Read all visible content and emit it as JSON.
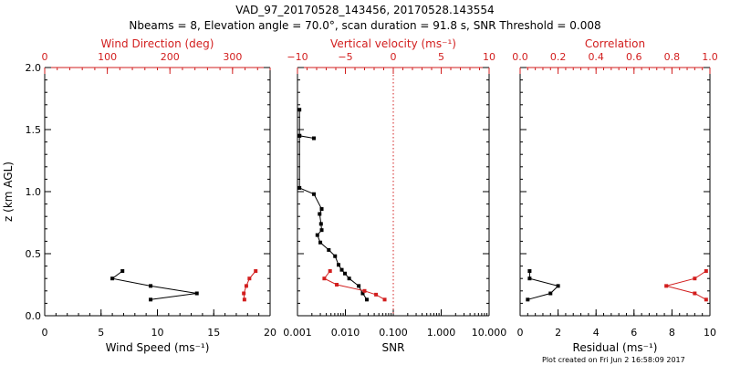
{
  "header": {
    "title_line1": "VAD_97_20170528_143456, 20170528.143554",
    "title_line2": "Nbeams = 8, Elevation angle = 70.0°, scan duration = 91.8 s, SNR Threshold = 0.008"
  },
  "footer": {
    "plot_created": "Plot created on Fri Jun  2 16:58:09 2017"
  },
  "colors": {
    "black": "#000000",
    "red": "#d21e1e"
  },
  "chart_data": [
    {
      "type": "line",
      "panel": "wind",
      "ylabel": "z (km AGL)",
      "ylim": [
        0,
        2
      ],
      "y_ticks": [
        "0.0",
        "0.5",
        "1.0",
        "1.5",
        "2.0"
      ],
      "bottom_axis": {
        "label": "Wind Speed (ms⁻¹)",
        "lim": [
          0,
          20
        ],
        "ticks": [
          "0",
          "5",
          "10",
          "15",
          "20"
        ]
      },
      "top_axis": {
        "label": "Wind Direction (deg)",
        "lim": [
          0,
          360
        ],
        "ticks": [
          "0",
          "100",
          "200",
          "300"
        ]
      },
      "series": [
        {
          "axis": "bottom",
          "color": "black",
          "points": [
            [
              9.4,
              0.13
            ],
            [
              13.5,
              0.18
            ],
            [
              9.4,
              0.24
            ],
            [
              6.0,
              0.3
            ],
            [
              6.9,
              0.36
            ]
          ]
        },
        {
          "axis": "top",
          "color": "red",
          "points": [
            [
              319,
              0.13
            ],
            [
              318,
              0.18
            ],
            [
              322,
              0.24
            ],
            [
              327,
              0.3
            ],
            [
              337,
              0.36
            ]
          ]
        }
      ]
    },
    {
      "type": "line",
      "panel": "snr",
      "ylim": [
        0,
        2
      ],
      "bottom_axis": {
        "label": "SNR",
        "scale": "log",
        "lim": [
          0.001,
          10
        ],
        "ticks": [
          "0.001",
          "0.010",
          "0.100",
          "1.000",
          "10.000"
        ]
      },
      "top_axis": {
        "label": "Vertical velocity (ms⁻¹)",
        "lim": [
          -10,
          10
        ],
        "ticks": [
          "−10",
          "−5",
          "0",
          "5",
          "10"
        ],
        "reference_line": 0
      },
      "series": [
        {
          "axis": "bottom",
          "color": "black",
          "points": [
            [
              0.0011,
              1.66
            ],
            [
              0.0011,
              1.45
            ],
            [
              0.0022,
              1.43
            ],
            [
              0.0011,
              1.45
            ],
            [
              0.0011,
              1.03
            ],
            [
              0.0022,
              0.98
            ],
            [
              0.0032,
              0.86
            ],
            [
              0.0029,
              0.82
            ],
            [
              0.0031,
              0.74
            ],
            [
              0.0032,
              0.69
            ],
            [
              0.0026,
              0.65
            ],
            [
              0.003,
              0.59
            ],
            [
              0.0045,
              0.53
            ],
            [
              0.0061,
              0.48
            ],
            [
              0.0072,
              0.41
            ],
            [
              0.0084,
              0.37
            ],
            [
              0.0098,
              0.34
            ],
            [
              0.012,
              0.3
            ],
            [
              0.019,
              0.24
            ],
            [
              0.023,
              0.18
            ],
            [
              0.028,
              0.13
            ]
          ]
        },
        {
          "axis": "top",
          "color": "red",
          "points": [
            [
              -6.6,
              0.36
            ],
            [
              -7.2,
              0.3
            ],
            [
              -5.9,
              0.25
            ],
            [
              -3.0,
              0.2
            ],
            [
              -1.8,
              0.17
            ],
            [
              -0.9,
              0.13
            ]
          ]
        }
      ]
    },
    {
      "type": "line",
      "panel": "residual",
      "ylim": [
        0,
        2
      ],
      "bottom_axis": {
        "label": "Residual (ms⁻¹)",
        "lim": [
          0,
          10
        ],
        "ticks": [
          "0",
          "2",
          "4",
          "6",
          "8",
          "10"
        ]
      },
      "top_axis": {
        "label": "Correlation",
        "lim": [
          0.0,
          1.0
        ],
        "ticks": [
          "0.0",
          "0.2",
          "0.4",
          "0.6",
          "0.8",
          "1.0"
        ]
      },
      "series": [
        {
          "axis": "bottom",
          "color": "black",
          "points": [
            [
              0.4,
              0.13
            ],
            [
              1.6,
              0.18
            ],
            [
              2.0,
              0.24
            ],
            [
              0.5,
              0.3
            ],
            [
              0.5,
              0.36
            ]
          ]
        },
        {
          "axis": "top",
          "color": "red",
          "points": [
            [
              0.98,
              0.13
            ],
            [
              0.92,
              0.18
            ],
            [
              0.77,
              0.24
            ],
            [
              0.92,
              0.3
            ],
            [
              0.98,
              0.36
            ]
          ]
        }
      ]
    }
  ]
}
